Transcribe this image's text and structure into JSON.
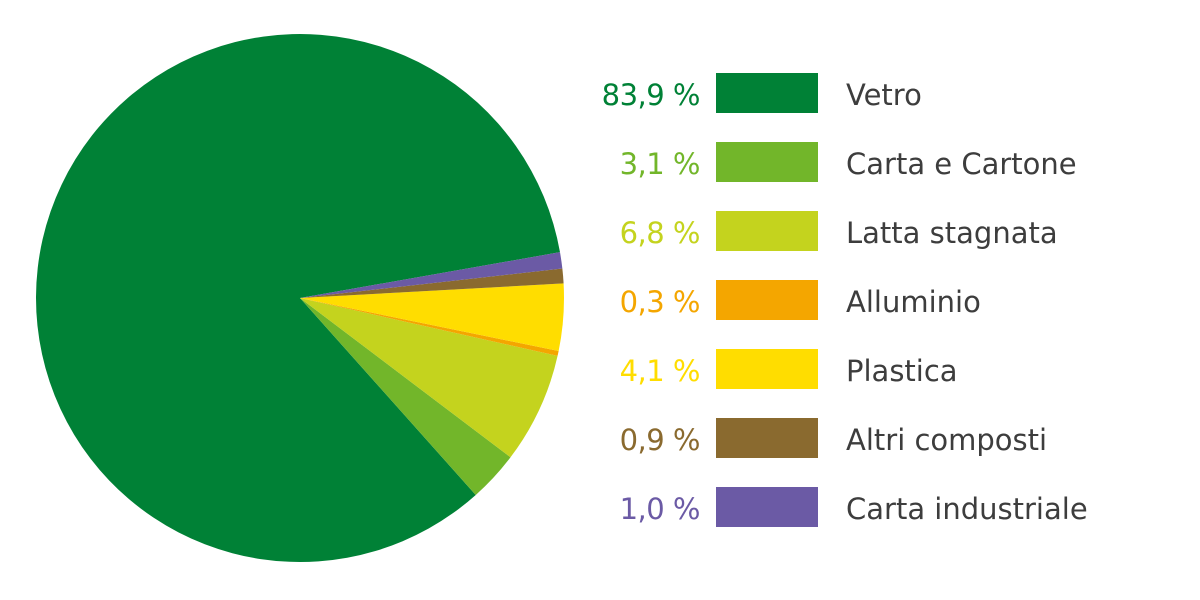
{
  "chart_data": {
    "type": "pie",
    "title": "",
    "start_angle_deg": 10,
    "direction": "counterclockwise",
    "slices": [
      {
        "label": "Vetro",
        "value": 83.9,
        "value_text": "83,9 %",
        "color": "#008136"
      },
      {
        "label": "Carta e Cartone",
        "value": 3.1,
        "value_text": "3,1 %",
        "color": "#72b62a"
      },
      {
        "label": "Latta stagnata",
        "value": 6.8,
        "value_text": "6,8 %",
        "color": "#c4d31e"
      },
      {
        "label": "Alluminio",
        "value": 0.3,
        "value_text": "0,3 %",
        "color": "#f4a600"
      },
      {
        "label": "Plastica",
        "value": 4.1,
        "value_text": "4,1 %",
        "color": "#ffdd00"
      },
      {
        "label": "Altri composti",
        "value": 0.9,
        "value_text": "0,9 %",
        "color": "#8a6a2f"
      },
      {
        "label": "Carta industriale",
        "value": 1.0,
        "value_text": "1,0 %",
        "color": "#6b5aa5"
      }
    ],
    "legend_position": "right"
  }
}
